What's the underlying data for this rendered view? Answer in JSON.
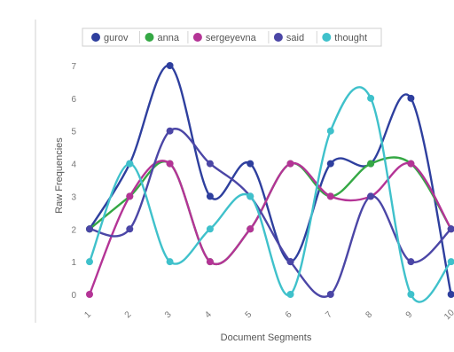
{
  "chart_data": {
    "type": "line",
    "title": "",
    "xlabel": "Document Segments",
    "ylabel": "Raw Frequencies",
    "categories": [
      "1",
      "2",
      "3",
      "4",
      "5",
      "6",
      "7",
      "8",
      "9",
      "10"
    ],
    "ylim": [
      0,
      7
    ],
    "yticks": [
      0,
      1,
      2,
      3,
      4,
      5,
      6,
      7
    ],
    "grid": false,
    "smooth": true,
    "legend_position": "top",
    "series": [
      {
        "name": "gurov",
        "color": "#2e3f9e",
        "values": [
          2,
          4,
          7,
          3,
          4,
          1,
          4,
          4,
          6,
          0
        ]
      },
      {
        "name": "anna",
        "color": "#35a845",
        "values": [
          2,
          3,
          4,
          1,
          2,
          4,
          3,
          4,
          4,
          2
        ]
      },
      {
        "name": "sergeyevna",
        "color": "#b43496",
        "values": [
          0,
          3,
          4,
          1,
          2,
          4,
          3,
          3,
          4,
          2
        ]
      },
      {
        "name": "said",
        "color": "#4b46a6",
        "values": [
          2,
          2,
          5,
          4,
          3,
          1,
          0,
          3,
          1,
          2
        ]
      },
      {
        "name": "thought",
        "color": "#3fc1cb",
        "values": [
          1,
          4,
          1,
          2,
          3,
          0,
          5,
          6,
          0,
          1
        ]
      }
    ]
  }
}
